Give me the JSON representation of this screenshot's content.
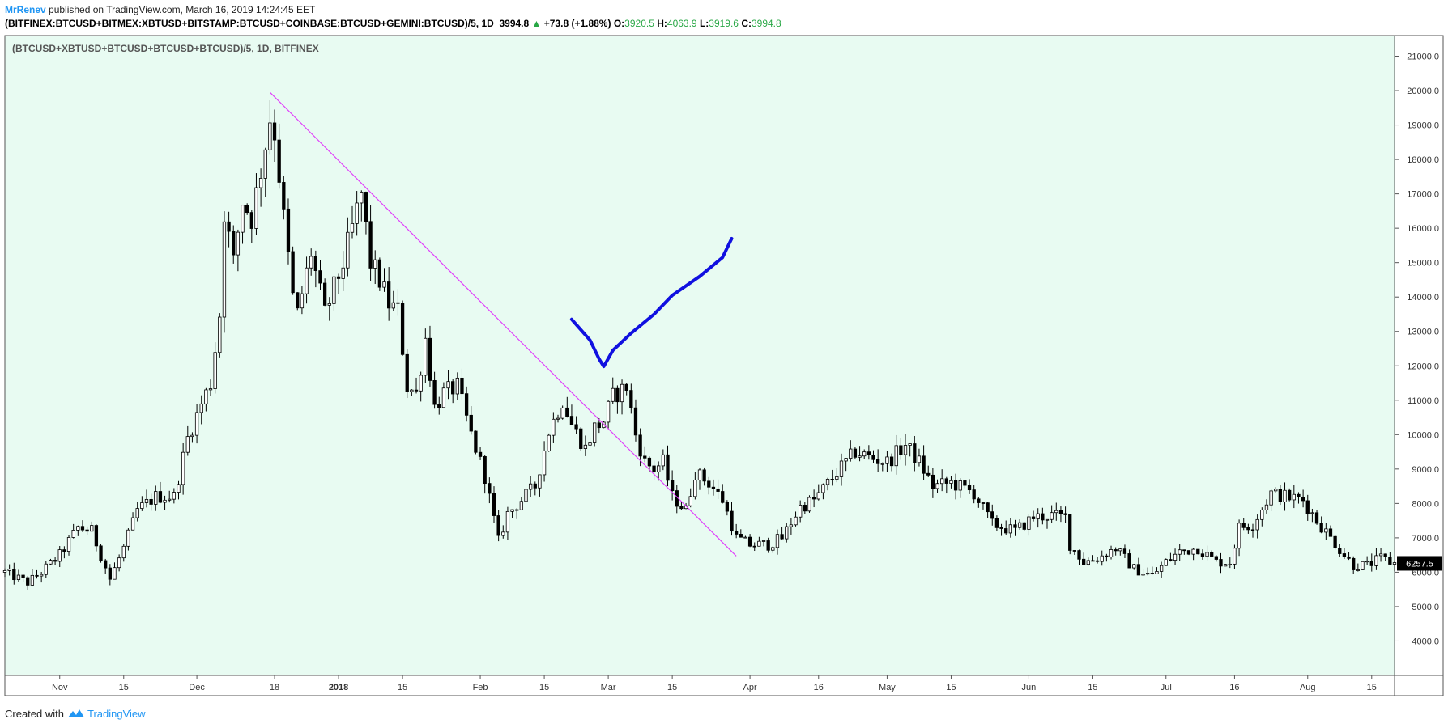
{
  "header": {
    "author": "MrRenev",
    "published": " published on TradingView.com, March 16, 2019 14:24:45 EET",
    "symbol": "(BITFINEX:BTCUSD+BITMEX:XBTUSD+BITSTAMP:BTCUSD+COINBASE:BTCUSD+GEMINI:BTCUSD)/5, 1D",
    "last": "3994.8",
    "up_arrow": "▲",
    "change": "+73.8 (+1.88%)",
    "o_label": "O:",
    "o": "3920.5",
    "h_label": "H:",
    "h": "4063.9",
    "l_label": "L:",
    "l": "3919.6",
    "c_label": "C:",
    "c": "3994.8"
  },
  "footer": {
    "created_with": "Created with",
    "brand": "TradingView"
  },
  "colors": {
    "plot_bg": "#e8fbf2",
    "candle": "#000000",
    "trendline": "#e040fb",
    "drawing": "#1010e0",
    "accent": "#2196f3",
    "up": "#28a745"
  },
  "chart_data": {
    "type": "candlestick",
    "title": "(BTCUSD+XBTUSD+BTCUSD+BTCUSD+BTCUSD)/5, 1D, BITFINEX",
    "xlabel": "",
    "ylabel": "",
    "ylim": [
      3000,
      21600
    ],
    "y_ticks": [
      "21000.0",
      "20000.0",
      "19000.0",
      "18000.0",
      "17000.0",
      "16000.0",
      "15000.0",
      "14000.0",
      "13000.0",
      "12000.0",
      "11000.0",
      "10000.0",
      "9000.0",
      "8000.0",
      "7000.0",
      "6000.0",
      "5000.0",
      "4000.0"
    ],
    "x_ticks": [
      {
        "label": "Nov",
        "date": "2017-11-01"
      },
      {
        "label": "15",
        "date": "2017-11-15"
      },
      {
        "label": "Dec",
        "date": "2017-12-01"
      },
      {
        "label": "18",
        "date": "2017-12-18"
      },
      {
        "label": "2018",
        "date": "2018-01-01",
        "bold": true
      },
      {
        "label": "15",
        "date": "2018-01-15"
      },
      {
        "label": "Feb",
        "date": "2018-02-01"
      },
      {
        "label": "15",
        "date": "2018-02-15"
      },
      {
        "label": "Mar",
        "date": "2018-03-01"
      },
      {
        "label": "15",
        "date": "2018-03-15"
      },
      {
        "label": "Apr",
        "date": "2018-04-01"
      },
      {
        "label": "16",
        "date": "2018-04-16"
      },
      {
        "label": "May",
        "date": "2018-05-01"
      },
      {
        "label": "15",
        "date": "2018-05-15"
      },
      {
        "label": "Jun",
        "date": "2018-06-01"
      },
      {
        "label": "15",
        "date": "2018-06-15"
      },
      {
        "label": "Jul",
        "date": "2018-07-01"
      },
      {
        "label": "16",
        "date": "2018-07-16"
      },
      {
        "label": "Aug",
        "date": "2018-08-01"
      },
      {
        "label": "15",
        "date": "2018-08-15"
      }
    ],
    "x_range": [
      "2017-10-20",
      "2018-08-20"
    ],
    "close_anchors": [
      [
        "2017-10-20",
        6000
      ],
      [
        "2017-10-25",
        5700
      ],
      [
        "2017-10-28",
        6000
      ],
      [
        "2017-11-01",
        6500
      ],
      [
        "2017-11-05",
        7300
      ],
      [
        "2017-11-08",
        7200
      ],
      [
        "2017-11-12",
        5800
      ],
      [
        "2017-11-15",
        6700
      ],
      [
        "2017-11-18",
        7800
      ],
      [
        "2017-11-22",
        8200
      ],
      [
        "2017-11-26",
        8200
      ],
      [
        "2017-11-29",
        9900
      ],
      [
        "2017-12-02",
        10900
      ],
      [
        "2017-12-04",
        11500
      ],
      [
        "2017-12-06",
        13500
      ],
      [
        "2017-12-07",
        16500
      ],
      [
        "2017-12-09",
        15000
      ],
      [
        "2017-12-11",
        16800
      ],
      [
        "2017-12-13",
        16300
      ],
      [
        "2017-12-15",
        17700
      ],
      [
        "2017-12-17",
        19200
      ],
      [
        "2017-12-18",
        18800
      ],
      [
        "2017-12-20",
        16300
      ],
      [
        "2017-12-22",
        14000
      ],
      [
        "2017-12-23",
        13500
      ],
      [
        "2017-12-26",
        15300
      ],
      [
        "2017-12-29",
        13500
      ],
      [
        "2018-01-02",
        15000
      ],
      [
        "2018-01-04",
        16000
      ],
      [
        "2018-01-06",
        17000
      ],
      [
        "2018-01-08",
        15000
      ],
      [
        "2018-01-10",
        14500
      ],
      [
        "2018-01-12",
        13800
      ],
      [
        "2018-01-14",
        13600
      ],
      [
        "2018-01-16",
        11400
      ],
      [
        "2018-01-18",
        11200
      ],
      [
        "2018-01-20",
        12800
      ],
      [
        "2018-01-22",
        10800
      ],
      [
        "2018-01-24",
        11200
      ],
      [
        "2018-01-27",
        11400
      ],
      [
        "2018-01-30",
        10000
      ],
      [
        "2018-02-02",
        8800
      ],
      [
        "2018-02-05",
        6900
      ],
      [
        "2018-02-07",
        7700
      ],
      [
        "2018-02-10",
        8100
      ],
      [
        "2018-02-13",
        8500
      ],
      [
        "2018-02-16",
        10100
      ],
      [
        "2018-02-19",
        11000
      ],
      [
        "2018-02-21",
        10300
      ],
      [
        "2018-02-24",
        9600
      ],
      [
        "2018-02-26",
        10200
      ],
      [
        "2018-02-28",
        10400
      ],
      [
        "2018-03-02",
        11100
      ],
      [
        "2018-03-05",
        11400
      ],
      [
        "2018-03-07",
        10000
      ],
      [
        "2018-03-09",
        9200
      ],
      [
        "2018-03-11",
        9000
      ],
      [
        "2018-03-13",
        9200
      ],
      [
        "2018-03-15",
        8200
      ],
      [
        "2018-03-18",
        7800
      ],
      [
        "2018-03-20",
        8900
      ],
      [
        "2018-03-23",
        8600
      ],
      [
        "2018-03-26",
        8100
      ],
      [
        "2018-03-29",
        7000
      ],
      [
        "2018-04-01",
        6800
      ],
      [
        "2018-04-05",
        6800
      ],
      [
        "2018-04-08",
        7000
      ],
      [
        "2018-04-12",
        7900
      ],
      [
        "2018-04-15",
        8100
      ],
      [
        "2018-04-20",
        8900
      ],
      [
        "2018-04-24",
        9500
      ],
      [
        "2018-04-28",
        9300
      ],
      [
        "2018-05-01",
        9200
      ],
      [
        "2018-05-05",
        9700
      ],
      [
        "2018-05-08",
        9200
      ],
      [
        "2018-05-11",
        8500
      ],
      [
        "2018-05-15",
        8600
      ],
      [
        "2018-05-20",
        8300
      ],
      [
        "2018-05-24",
        7400
      ],
      [
        "2018-05-29",
        7200
      ],
      [
        "2018-06-02",
        7600
      ],
      [
        "2018-06-06",
        7650
      ],
      [
        "2018-06-09",
        7600
      ],
      [
        "2018-06-10",
        6800
      ],
      [
        "2018-06-13",
        6300
      ],
      [
        "2018-06-16",
        6400
      ],
      [
        "2018-06-20",
        6700
      ],
      [
        "2018-06-24",
        6100
      ],
      [
        "2018-06-28",
        5900
      ],
      [
        "2018-07-01",
        6300
      ],
      [
        "2018-07-04",
        6600
      ],
      [
        "2018-07-08",
        6700
      ],
      [
        "2018-07-12",
        6300
      ],
      [
        "2018-07-15",
        6300
      ],
      [
        "2018-07-17",
        7300
      ],
      [
        "2018-07-20",
        7400
      ],
      [
        "2018-07-24",
        8300
      ],
      [
        "2018-07-27",
        8200
      ],
      [
        "2018-07-31",
        8100
      ],
      [
        "2018-08-03",
        7500
      ],
      [
        "2018-08-06",
        7000
      ],
      [
        "2018-08-09",
        6500
      ],
      [
        "2018-08-11",
        6200
      ],
      [
        "2018-08-14",
        6200
      ],
      [
        "2018-08-17",
        6400
      ],
      [
        "2018-08-20",
        6257.5
      ]
    ],
    "last_price_label": "6257.5",
    "trendline": {
      "from": [
        "2017-12-17",
        19950
      ],
      "to": [
        "2018-03-29",
        6470
      ]
    },
    "drawing_checkmark": [
      [
        "2018-02-21",
        13350
      ],
      [
        "2018-02-25",
        12750
      ],
      [
        "2018-02-27",
        12200
      ],
      [
        "2018-02-28",
        11980
      ],
      [
        "2018-03-02",
        12450
      ],
      [
        "2018-03-06",
        12950
      ],
      [
        "2018-03-11",
        13500
      ],
      [
        "2018-03-15",
        14050
      ],
      [
        "2018-03-21",
        14600
      ],
      [
        "2018-03-26",
        15150
      ],
      [
        "2018-03-28",
        15700
      ]
    ]
  }
}
